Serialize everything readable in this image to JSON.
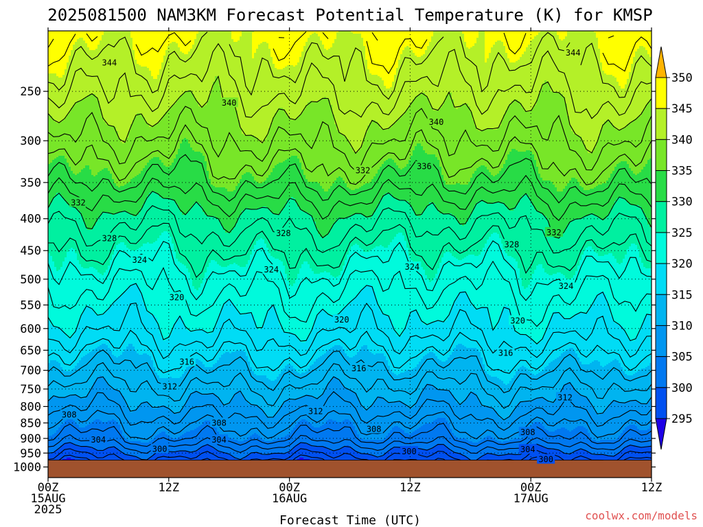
{
  "chart_data": {
    "type": "contour",
    "title": "2025081500 NAM3KM Forecast Potential Temperature (K) for KMSP",
    "xlabel": "Forecast Time (UTC)",
    "ylabel": "",
    "x_range_hours": [
      0,
      60
    ],
    "y_range_hPa": [
      1040,
      200
    ],
    "y_scale": "log-pressure",
    "grid": true,
    "y_ticks": [
      250,
      300,
      350,
      400,
      450,
      500,
      550,
      600,
      650,
      700,
      750,
      800,
      850,
      900,
      950,
      1000
    ],
    "x_ticks": [
      {
        "hour": 0,
        "lines": [
          "00Z",
          "15AUG",
          "2025"
        ]
      },
      {
        "hour": 12,
        "lines": [
          "12Z"
        ]
      },
      {
        "hour": 24,
        "lines": [
          "00Z",
          "16AUG"
        ]
      },
      {
        "hour": 36,
        "lines": [
          "12Z"
        ]
      },
      {
        "hour": 48,
        "lines": [
          "00Z",
          "17AUG"
        ]
      },
      {
        "hour": 60,
        "lines": [
          "12Z"
        ]
      }
    ],
    "colorbar": {
      "levels": [
        295,
        300,
        305,
        310,
        315,
        320,
        325,
        330,
        335,
        340,
        345,
        350
      ],
      "labels": [
        "350",
        "345",
        "340",
        "335",
        "330",
        "325",
        "320",
        "315",
        "310",
        "305",
        "300",
        "295"
      ],
      "colors": [
        "#1e00e6",
        "#0050f0",
        "#0078f0",
        "#0096f0",
        "#00b4f0",
        "#00dcf5",
        "#00fadc",
        "#00f0a0",
        "#28dc46",
        "#78e628",
        "#b4f028",
        "#ffff00",
        "#ffb400"
      ]
    },
    "profile_levels_hPa": [
      965,
      900,
      800,
      700,
      600,
      500,
      400,
      350,
      300,
      250,
      200
    ],
    "profile_theta_K": [
      298,
      304,
      309,
      314,
      319,
      323,
      329,
      334,
      338,
      342,
      346
    ],
    "ground_level_hPa": 975,
    "ground_color": "#a0522d",
    "contour_labels": [
      {
        "text": "344",
        "hour": 6.1,
        "hPa": 225
      },
      {
        "text": "344",
        "hour": 52.2,
        "hPa": 217
      },
      {
        "text": "340",
        "hour": 18.0,
        "hPa": 261
      },
      {
        "text": "340",
        "hour": 38.6,
        "hPa": 280
      },
      {
        "text": "336",
        "hour": 37.4,
        "hPa": 330
      },
      {
        "text": "332",
        "hour": 31.3,
        "hPa": 335
      },
      {
        "text": "332",
        "hour": 3.0,
        "hPa": 377
      },
      {
        "text": "332",
        "hour": 50.3,
        "hPa": 421
      },
      {
        "text": "328",
        "hour": 6.1,
        "hPa": 430
      },
      {
        "text": "328",
        "hour": 23.4,
        "hPa": 422
      },
      {
        "text": "328",
        "hour": 46.1,
        "hPa": 440
      },
      {
        "text": "324",
        "hour": 9.1,
        "hPa": 466
      },
      {
        "text": "324",
        "hour": 22.2,
        "hPa": 483
      },
      {
        "text": "324",
        "hour": 36.2,
        "hPa": 478
      },
      {
        "text": "324",
        "hour": 51.5,
        "hPa": 513
      },
      {
        "text": "320",
        "hour": 12.8,
        "hPa": 535
      },
      {
        "text": "320",
        "hour": 29.2,
        "hPa": 581
      },
      {
        "text": "320",
        "hour": 46.7,
        "hPa": 583
      },
      {
        "text": "316",
        "hour": 13.8,
        "hPa": 679
      },
      {
        "text": "316",
        "hour": 30.9,
        "hPa": 695
      },
      {
        "text": "316",
        "hour": 45.5,
        "hPa": 657
      },
      {
        "text": "312",
        "hour": 12.1,
        "hPa": 744
      },
      {
        "text": "312",
        "hour": 26.6,
        "hPa": 815
      },
      {
        "text": "312",
        "hour": 51.4,
        "hPa": 774
      },
      {
        "text": "308",
        "hour": 2.1,
        "hPa": 825
      },
      {
        "text": "308",
        "hour": 17.0,
        "hPa": 850
      },
      {
        "text": "308",
        "hour": 32.4,
        "hPa": 870
      },
      {
        "text": "308",
        "hour": 47.7,
        "hPa": 880
      },
      {
        "text": "304",
        "hour": 5.0,
        "hPa": 905
      },
      {
        "text": "304",
        "hour": 17.0,
        "hPa": 905
      },
      {
        "text": "304",
        "hour": 47.7,
        "hPa": 938
      },
      {
        "text": "300",
        "hour": 11.1,
        "hPa": 936
      },
      {
        "text": "300",
        "hour": 35.9,
        "hPa": 945
      },
      {
        "text": "300",
        "hour": 49.5,
        "hPa": 973
      }
    ]
  },
  "credit": "coolwx.com/models",
  "credit_color": "#e05050"
}
